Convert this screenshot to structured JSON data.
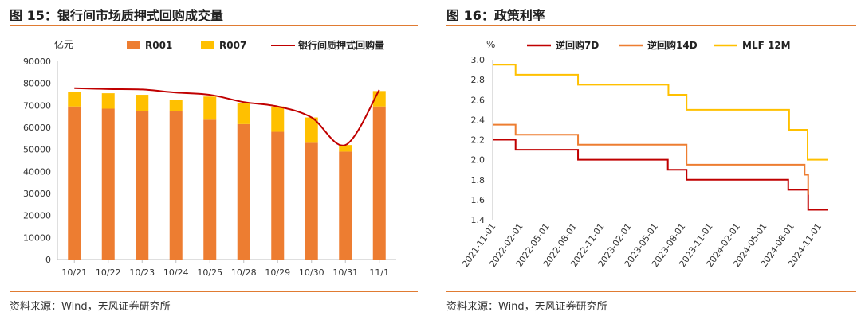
{
  "left": {
    "title": "图 15：银行间市场质押式回购成交量",
    "source": "资料来源：Wind，天风证券研究所",
    "chart_data": {
      "type": "bar",
      "stacked": true,
      "unit_label": "亿元",
      "categories": [
        "10/21",
        "10/22",
        "10/23",
        "10/24",
        "10/25",
        "10/28",
        "10/29",
        "10/30",
        "10/31",
        "11/1"
      ],
      "series": [
        {
          "name": "R001",
          "type": "bar",
          "color": "#ed7d31",
          "values": [
            69500,
            68500,
            67500,
            67500,
            63500,
            61500,
            58000,
            53000,
            49000,
            69500
          ]
        },
        {
          "name": "R007",
          "type": "bar",
          "color": "#ffc000",
          "values": [
            6700,
            7000,
            7300,
            5000,
            10500,
            9500,
            11500,
            11500,
            3000,
            7000
          ]
        },
        {
          "name": "银行间质押式回购量",
          "type": "line",
          "color": "#c00000",
          "values": [
            77800,
            77400,
            77200,
            75800,
            74800,
            71500,
            69500,
            64500,
            52000,
            77000
          ]
        }
      ],
      "ylim": [
        0,
        90000
      ],
      "yticks": [
        0,
        10000,
        20000,
        30000,
        40000,
        50000,
        60000,
        70000,
        80000,
        90000
      ],
      "legend": "top"
    }
  },
  "right": {
    "title": "图 16：政策利率",
    "source": "资料来源：Wind，天风证券研究所",
    "chart_data": {
      "type": "line",
      "step": true,
      "unit_label": "%",
      "xrange": [
        "2021-11-01",
        "2024-12-01"
      ],
      "xticks": [
        "2021-11-01",
        "2022-02-01",
        "2022-05-01",
        "2022-08-01",
        "2022-11-01",
        "2023-02-01",
        "2023-05-01",
        "2023-08-01",
        "2023-11-01",
        "2024-02-01",
        "2024-05-01",
        "2024-08-01",
        "2024-11-01"
      ],
      "ylim": [
        1.4,
        3.0
      ],
      "yticks": [
        "1.4",
        "1.6",
        "1.8",
        "2.0",
        "2.2",
        "2.4",
        "2.6",
        "2.8",
        "3.0"
      ],
      "legend": "top",
      "series": [
        {
          "name": "逆回购7D",
          "color": "#c00000",
          "points": [
            [
              "2021-11-01",
              2.2
            ],
            [
              "2022-01-17",
              2.1
            ],
            [
              "2022-08-15",
              2.0
            ],
            [
              "2023-06-13",
              1.9
            ],
            [
              "2023-08-15",
              1.8
            ],
            [
              "2024-07-22",
              1.7
            ],
            [
              "2024-09-27",
              1.5
            ],
            [
              "2024-12-01",
              1.5
            ]
          ]
        },
        {
          "name": "逆回购14D",
          "color": "#ed7d31",
          "points": [
            [
              "2021-11-01",
              2.35
            ],
            [
              "2022-01-17",
              2.25
            ],
            [
              "2022-08-15",
              2.15
            ],
            [
              "2023-08-15",
              1.95
            ],
            [
              "2024-09-15",
              1.85
            ],
            [
              "2024-09-27",
              1.65
            ]
          ]
        },
        {
          "name": "MLF 12M",
          "color": "#ffc000",
          "points": [
            [
              "2021-11-01",
              2.95
            ],
            [
              "2022-01-17",
              2.85
            ],
            [
              "2022-08-15",
              2.75
            ],
            [
              "2023-06-15",
              2.65
            ],
            [
              "2023-08-15",
              2.5
            ],
            [
              "2024-07-25",
              2.3
            ],
            [
              "2024-09-25",
              2.0
            ],
            [
              "2024-12-01",
              2.0
            ]
          ]
        }
      ]
    }
  }
}
